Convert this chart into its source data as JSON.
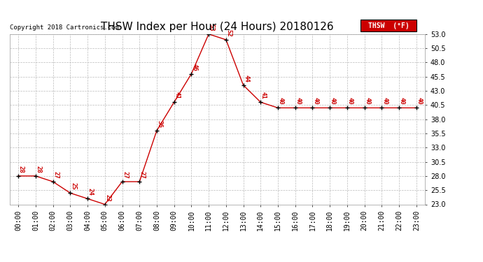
{
  "title": "THSW Index per Hour (24 Hours) 20180126",
  "copyright": "Copyright 2018 Cartronics.com",
  "legend_label": "THSW  (°F)",
  "hours": [
    0,
    1,
    2,
    3,
    4,
    5,
    6,
    7,
    8,
    9,
    10,
    11,
    12,
    13,
    14,
    15,
    16,
    17,
    18,
    19,
    20,
    21,
    22,
    23
  ],
  "values": [
    28,
    28,
    27,
    25,
    24,
    23,
    27,
    27,
    36,
    41,
    46,
    53,
    52,
    44,
    41,
    40,
    40,
    40,
    40,
    40,
    40,
    40,
    40,
    40
  ],
  "line_color": "#cc0000",
  "marker_color": "#000000",
  "label_color": "#cc0000",
  "ylim_min": 23.0,
  "ylim_max": 53.0,
  "yticks": [
    23.0,
    25.5,
    28.0,
    30.5,
    33.0,
    35.5,
    38.0,
    40.5,
    43.0,
    45.5,
    48.0,
    50.5,
    53.0
  ],
  "background_color": "#ffffff",
  "grid_color": "#bbbbbb",
  "title_fontsize": 11,
  "axis_fontsize": 7,
  "label_fontsize": 6.5,
  "legend_bg": "#cc0000",
  "legend_text_color": "#ffffff"
}
